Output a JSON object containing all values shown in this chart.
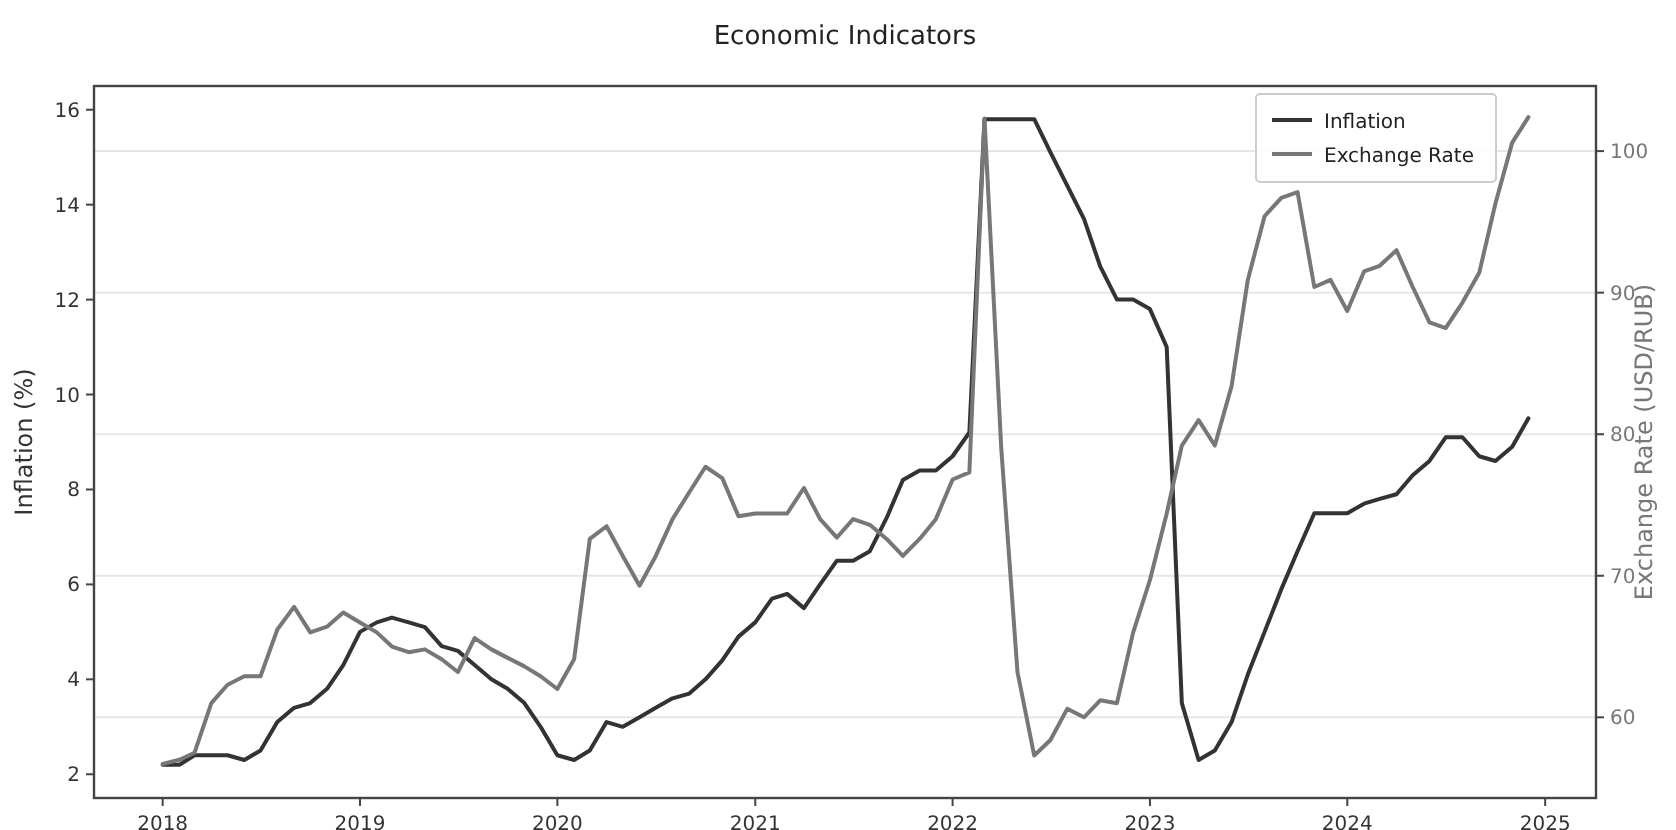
{
  "chart_data": {
    "type": "line",
    "title": "Economic Indicators",
    "ylabel": "Inflation (%)",
    "y2label": "Exchange Rate (USD/RUB)",
    "x": [
      "2018-01",
      "2018-02",
      "2018-03",
      "2018-04",
      "2018-05",
      "2018-06",
      "2018-07",
      "2018-08",
      "2018-09",
      "2018-10",
      "2018-11",
      "2018-12",
      "2019-01",
      "2019-02",
      "2019-03",
      "2019-04",
      "2019-05",
      "2019-06",
      "2019-07",
      "2019-08",
      "2019-09",
      "2019-10",
      "2019-11",
      "2019-12",
      "2020-01",
      "2020-02",
      "2020-03",
      "2020-04",
      "2020-05",
      "2020-06",
      "2020-07",
      "2020-08",
      "2020-09",
      "2020-10",
      "2020-11",
      "2020-12",
      "2021-01",
      "2021-02",
      "2021-03",
      "2021-04",
      "2021-05",
      "2021-06",
      "2021-07",
      "2021-08",
      "2021-09",
      "2021-10",
      "2021-11",
      "2021-12",
      "2022-01",
      "2022-02",
      "2022-03",
      "2022-04",
      "2022-05",
      "2022-06",
      "2022-07",
      "2022-08",
      "2022-09",
      "2022-10",
      "2022-11",
      "2022-12",
      "2023-01",
      "2023-02",
      "2023-03",
      "2023-04",
      "2023-05",
      "2023-06",
      "2023-07",
      "2023-08",
      "2023-09",
      "2023-10",
      "2023-11",
      "2023-12",
      "2024-01",
      "2024-02",
      "2024-03",
      "2024-04",
      "2024-05",
      "2024-06",
      "2024-07",
      "2024-08",
      "2024-09",
      "2024-10",
      "2024-11",
      "2024-12"
    ],
    "series": [
      {
        "name": "Inflation",
        "color": "#333333",
        "values": [
          2.2,
          2.2,
          2.4,
          2.4,
          2.4,
          2.3,
          2.5,
          3.1,
          3.4,
          3.5,
          3.8,
          4.3,
          5.0,
          5.2,
          5.3,
          5.2,
          5.1,
          4.7,
          4.6,
          4.3,
          4.0,
          3.8,
          3.5,
          3.0,
          2.4,
          2.3,
          2.5,
          3.1,
          3.0,
          3.2,
          3.4,
          3.6,
          3.7,
          4.0,
          4.4,
          4.9,
          5.2,
          5.7,
          5.8,
          5.5,
          6.0,
          6.5,
          6.5,
          6.7,
          7.4,
          8.2,
          8.4,
          8.4,
          8.7,
          9.2,
          15.8,
          15.8,
          15.8,
          15.8,
          15.1,
          14.4,
          13.7,
          12.7,
          12.0,
          12.0,
          11.8,
          11.0,
          3.5,
          2.3,
          2.5,
          3.1,
          4.1,
          5.0,
          5.9,
          6.7,
          7.5,
          7.5,
          7.5,
          7.7,
          7.8,
          7.9,
          8.3,
          8.6,
          9.1,
          9.1,
          8.7,
          8.6,
          8.9,
          9.5
        ]
      },
      {
        "name": "Exchange Rate",
        "color": "#777777",
        "axis": "y2",
        "values": [
          56.7,
          57.0,
          57.5,
          61.0,
          62.3,
          62.9,
          62.9,
          66.2,
          67.8,
          66.0,
          66.4,
          67.4,
          66.7,
          66.0,
          65.0,
          64.6,
          64.8,
          64.1,
          63.2,
          65.6,
          64.8,
          64.2,
          63.6,
          62.9,
          62.0,
          64.1,
          72.6,
          73.5,
          71.4,
          69.3,
          71.4,
          74.0,
          75.9,
          77.7,
          76.9,
          74.2,
          74.4,
          74.4,
          74.4,
          76.2,
          74.0,
          72.7,
          74.0,
          73.6,
          72.6,
          71.4,
          72.6,
          74.0,
          76.8,
          77.3,
          102.3,
          79.0,
          63.2,
          57.3,
          58.4,
          60.6,
          60.0,
          61.2,
          61.0,
          66.0,
          69.7,
          74.4,
          79.2,
          81.0,
          79.2,
          83.4,
          90.9,
          95.4,
          96.7,
          97.1,
          90.4,
          90.9,
          88.7,
          91.5,
          91.9,
          93.0,
          90.4,
          87.9,
          87.5,
          89.3,
          91.4,
          96.3,
          100.6,
          102.4
        ]
      }
    ],
    "xlim": [
      "2017-08-27",
      "2025-04-05"
    ],
    "xticks": [
      {
        "value": "2018-01-01",
        "label": "2018"
      },
      {
        "value": "2019-01-01",
        "label": "2019"
      },
      {
        "value": "2020-01-01",
        "label": "2020"
      },
      {
        "value": "2021-01-01",
        "label": "2021"
      },
      {
        "value": "2022-01-01",
        "label": "2022"
      },
      {
        "value": "2023-01-01",
        "label": "2023"
      },
      {
        "value": "2024-01-01",
        "label": "2024"
      },
      {
        "value": "2025-01-01",
        "label": "2025"
      }
    ],
    "ylim": [
      1.5,
      16.5
    ],
    "yticks": [
      2,
      4,
      6,
      8,
      10,
      12,
      14,
      16
    ],
    "y2lim": [
      54.3,
      104.6
    ],
    "y2ticks": [
      60,
      70,
      80,
      90,
      100
    ],
    "grid": "y2",
    "legend": "top right",
    "marker": "none",
    "line_style": "solid"
  }
}
